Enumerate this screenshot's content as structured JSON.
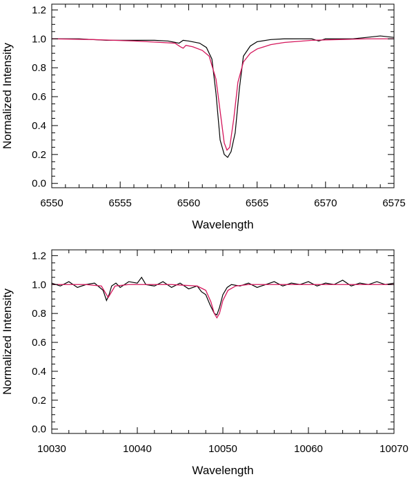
{
  "colors": {
    "observed": "#000000",
    "model": "#d4145a"
  },
  "chart_data": [
    {
      "type": "line",
      "xlabel": "Wavelength",
      "ylabel": "Normalized Intensity",
      "xlim": [
        6550,
        6575
      ],
      "ylim": [
        -0.03,
        1.24
      ],
      "xticks": [
        6550,
        6555,
        6560,
        6565,
        6570,
        6575
      ],
      "xtick_labels": [
        "6550",
        "6555",
        "6560",
        "6565",
        "6570",
        "6575"
      ],
      "yticks": [
        0.0,
        0.2,
        0.4,
        0.6,
        0.8,
        1.0,
        1.2
      ],
      "ytick_labels": [
        "0.0",
        "0.2",
        "0.4",
        "0.6",
        "0.8",
        "1.0",
        "1.2"
      ],
      "grid": false,
      "series": [
        {
          "x": [
            6550,
            6552,
            6554,
            6556,
            6557.5,
            6558.5,
            6559.3,
            6559.6,
            6560,
            6560.8,
            6561.3,
            6561.7,
            6562,
            6562.3,
            6562.6,
            6562.85,
            6563.1,
            6563.4,
            6563.7,
            6564.0,
            6564.5,
            6565,
            6566,
            6567,
            6568,
            6569,
            6569.5,
            6570,
            6572,
            6573,
            6574,
            6575
          ],
          "y": [
            1.0,
            1.0,
            0.99,
            0.99,
            0.99,
            0.985,
            0.97,
            0.99,
            0.985,
            0.97,
            0.94,
            0.86,
            0.62,
            0.3,
            0.2,
            0.18,
            0.22,
            0.35,
            0.65,
            0.88,
            0.95,
            0.98,
            0.995,
            1.0,
            1.0,
            1.0,
            0.985,
            1.0,
            1.0,
            1.01,
            1.02,
            1.01
          ]
        },
        {
          "x": [
            6550,
            6553,
            6556,
            6558,
            6559,
            6559.4,
            6559.6,
            6559.8,
            6560.3,
            6561,
            6561.5,
            6562,
            6562.3,
            6562.6,
            6562.8,
            6563.0,
            6563.3,
            6563.6,
            6564,
            6564.5,
            6565,
            6566,
            6567,
            6569,
            6571,
            6573,
            6575
          ],
          "y": [
            1.0,
            0.995,
            0.985,
            0.975,
            0.97,
            0.945,
            0.935,
            0.955,
            0.945,
            0.92,
            0.88,
            0.72,
            0.5,
            0.28,
            0.23,
            0.25,
            0.45,
            0.7,
            0.84,
            0.9,
            0.93,
            0.96,
            0.975,
            0.99,
            0.995,
            1.0,
            1.0
          ]
        }
      ]
    },
    {
      "type": "line",
      "xlabel": "Wavelength",
      "ylabel": "Normalized Intensity",
      "xlim": [
        10030,
        10070
      ],
      "ylim": [
        -0.03,
        1.24
      ],
      "xticks": [
        10030,
        10040,
        10050,
        10060,
        10070
      ],
      "xtick_labels": [
        "10030",
        "10040",
        "10050",
        "10060",
        "10070"
      ],
      "yticks": [
        0.0,
        0.2,
        0.4,
        0.6,
        0.8,
        1.0,
        1.2
      ],
      "ytick_labels": [
        "0.0",
        "0.2",
        "0.4",
        "0.6",
        "0.8",
        "1.0",
        "1.2"
      ],
      "grid": false,
      "series": [
        {
          "x": [
            10030,
            10031,
            10032,
            10033,
            10034,
            10035,
            10036,
            10036.4,
            10036.7,
            10037,
            10037.5,
            10038,
            10039,
            10040,
            10040.5,
            10041,
            10042,
            10043,
            10044,
            10045,
            10046,
            10047,
            10047.5,
            10048,
            10048.5,
            10049,
            10049.3,
            10049.6,
            10050,
            10050.5,
            10051,
            10052,
            10053,
            10054,
            10055,
            10056,
            10057,
            10058,
            10059,
            10060,
            10061,
            10062,
            10063,
            10064,
            10065,
            10066,
            10067,
            10068,
            10069,
            10070
          ],
          "y": [
            1.01,
            0.99,
            1.02,
            0.98,
            1.0,
            1.01,
            0.96,
            0.89,
            0.93,
            0.99,
            1.01,
            0.98,
            1.02,
            1.01,
            1.05,
            1.0,
            0.99,
            1.02,
            0.98,
            1.01,
            0.97,
            0.99,
            0.95,
            0.93,
            0.86,
            0.8,
            0.79,
            0.84,
            0.93,
            0.98,
            1.0,
            0.99,
            1.01,
            0.98,
            1.0,
            1.02,
            0.99,
            1.01,
            1.0,
            1.02,
            0.99,
            1.01,
            1.0,
            1.03,
            0.99,
            1.01,
            1.0,
            1.02,
            1.0,
            1.01
          ]
        },
        {
          "x": [
            10030,
            10034,
            10035.8,
            10036.3,
            10036.6,
            10036.9,
            10037.4,
            10039,
            10044,
            10047,
            10048,
            10048.6,
            10049.0,
            10049.3,
            10049.6,
            10050.0,
            10050.6,
            10051.5,
            10053,
            10058,
            10064,
            10070
          ],
          "y": [
            1.0,
            1.0,
            0.99,
            0.94,
            0.91,
            0.94,
            0.99,
            1.0,
            1.0,
            0.99,
            0.96,
            0.88,
            0.8,
            0.77,
            0.8,
            0.89,
            0.96,
            0.99,
            1.0,
            1.0,
            1.0,
            1.0
          ]
        }
      ]
    }
  ]
}
